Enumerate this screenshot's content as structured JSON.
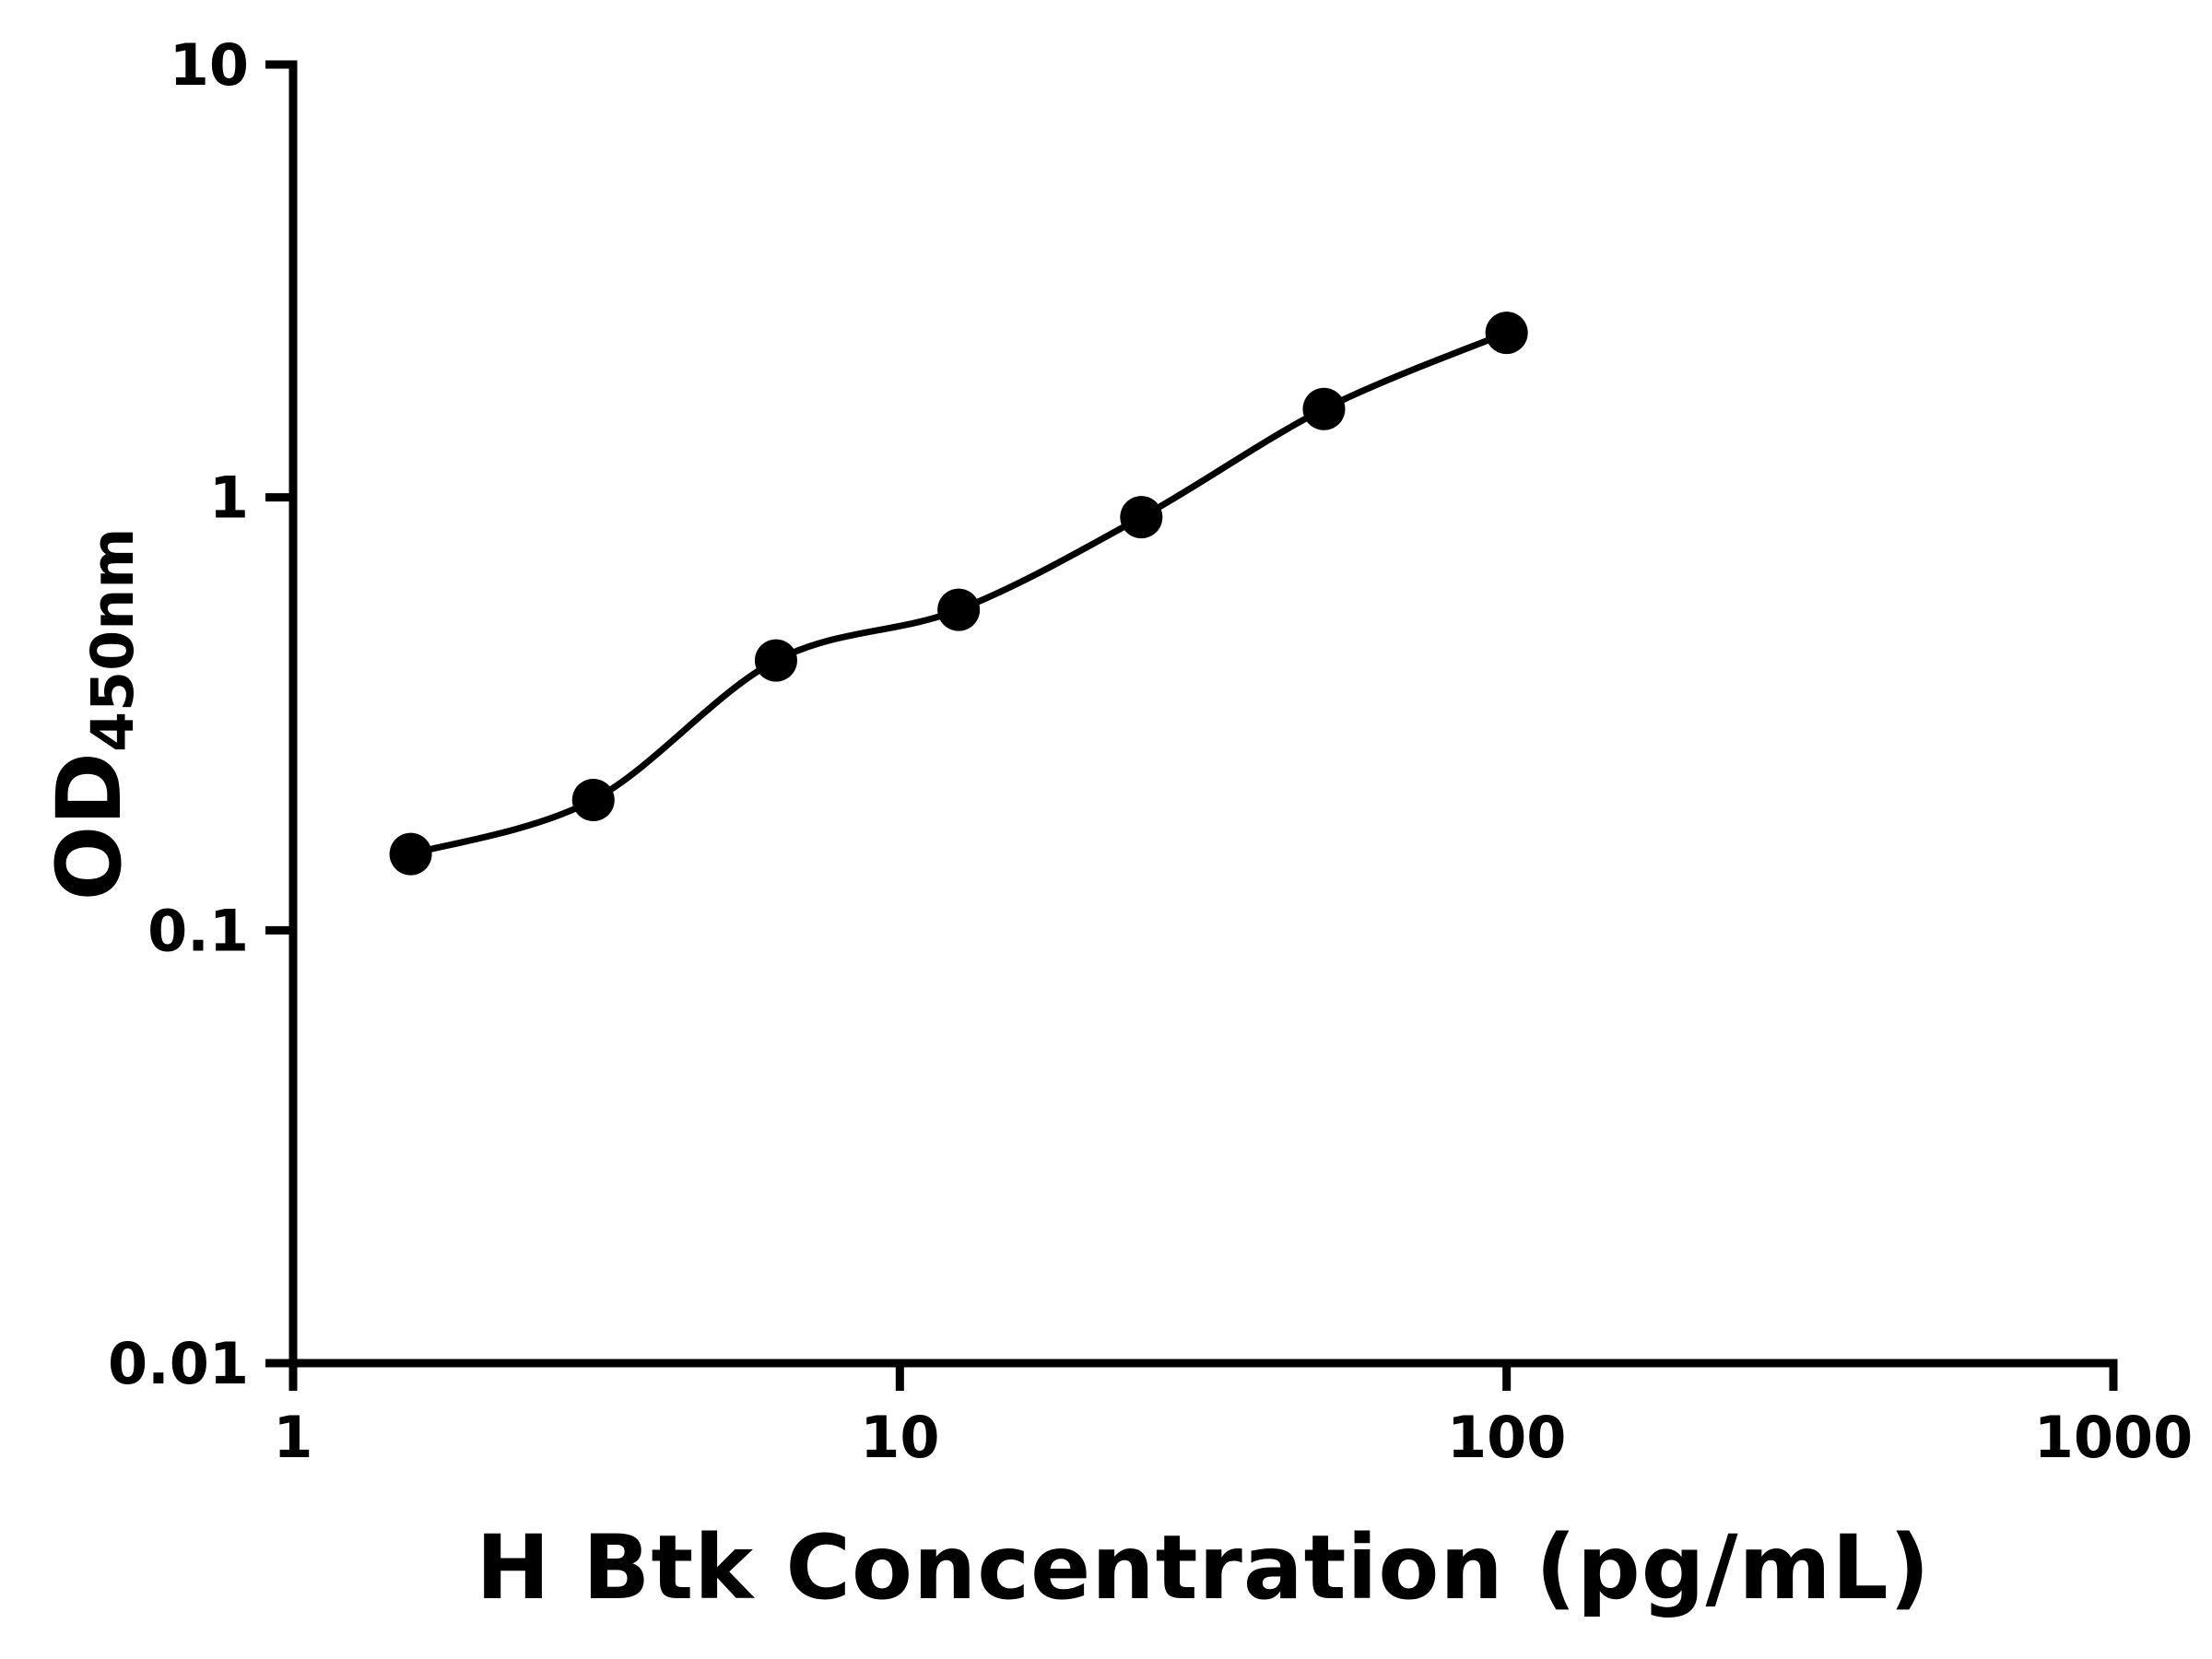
{
  "chart_data": {
    "type": "scatter",
    "xlabel": "H Btk Concentration (pg/mL)",
    "ylabel": {
      "main": "OD",
      "sub": "450nm"
    },
    "x_scale": "log",
    "y_scale": "log",
    "xlim": [
      1,
      1000
    ],
    "ylim": [
      0.01,
      10
    ],
    "x_tick_values": [
      1,
      10,
      100,
      1000
    ],
    "x_tick_labels": [
      "1",
      "10",
      "100",
      "1000"
    ],
    "y_tick_values": [
      0.01,
      0.1,
      1,
      10
    ],
    "y_tick_labels": [
      "0.01",
      "0.1",
      "1",
      "10"
    ],
    "grid": false,
    "legend": "none",
    "series": [
      {
        "marker": "filled-circle",
        "line": "smooth-fit-curve",
        "x": [
          1.5625,
          3.125,
          6.25,
          12.5,
          25,
          50,
          100
        ],
        "y": [
          0.15,
          0.2,
          0.42,
          0.55,
          0.9,
          1.6,
          2.4
        ]
      }
    ]
  },
  "colors": {
    "axis": "#000000",
    "marker": "#000000",
    "curve": "#000000",
    "background": "#ffffff"
  }
}
